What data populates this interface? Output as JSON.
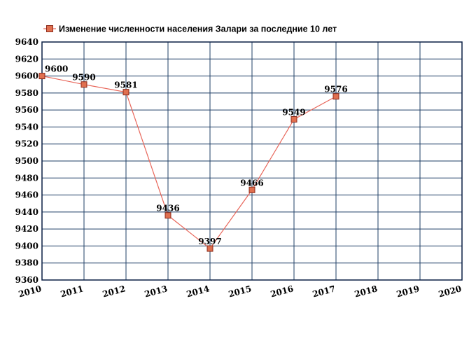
{
  "chart_data": {
    "type": "line",
    "title": "Изменение численности населения Залари за последние 10 лет",
    "legend_position": "top-left",
    "grid": true,
    "xlim": [
      2010,
      2020
    ],
    "ylim": [
      9360,
      9640
    ],
    "x_ticks": [
      "2010",
      "2011",
      "2012",
      "2013",
      "2014",
      "2015",
      "2016",
      "2017",
      "2018",
      "2019",
      "2020"
    ],
    "y_ticks": [
      "9360",
      "9380",
      "9400",
      "9420",
      "9440",
      "9460",
      "9480",
      "9500",
      "9520",
      "9540",
      "9560",
      "9580",
      "9600",
      "9620",
      "9640"
    ],
    "series": [
      {
        "name": "Изменение численности населения Залари за последние 10 лет",
        "x": [
          2010,
          2011,
          2012,
          2013,
          2014,
          2015,
          2016,
          2017
        ],
        "values": [
          9600,
          9590,
          9581,
          9436,
          9397,
          9466,
          9549,
          9576
        ],
        "labels": [
          "9600",
          "9590",
          "9581",
          "9436",
          "9397",
          "9466",
          "9549",
          "9576"
        ]
      }
    ],
    "colors": {
      "line": "#e8665a",
      "marker_fill": "#e07050",
      "marker_stroke": "#8b2a1a",
      "grid": "#1f3f66",
      "plot_border": "#0a1f44"
    }
  }
}
